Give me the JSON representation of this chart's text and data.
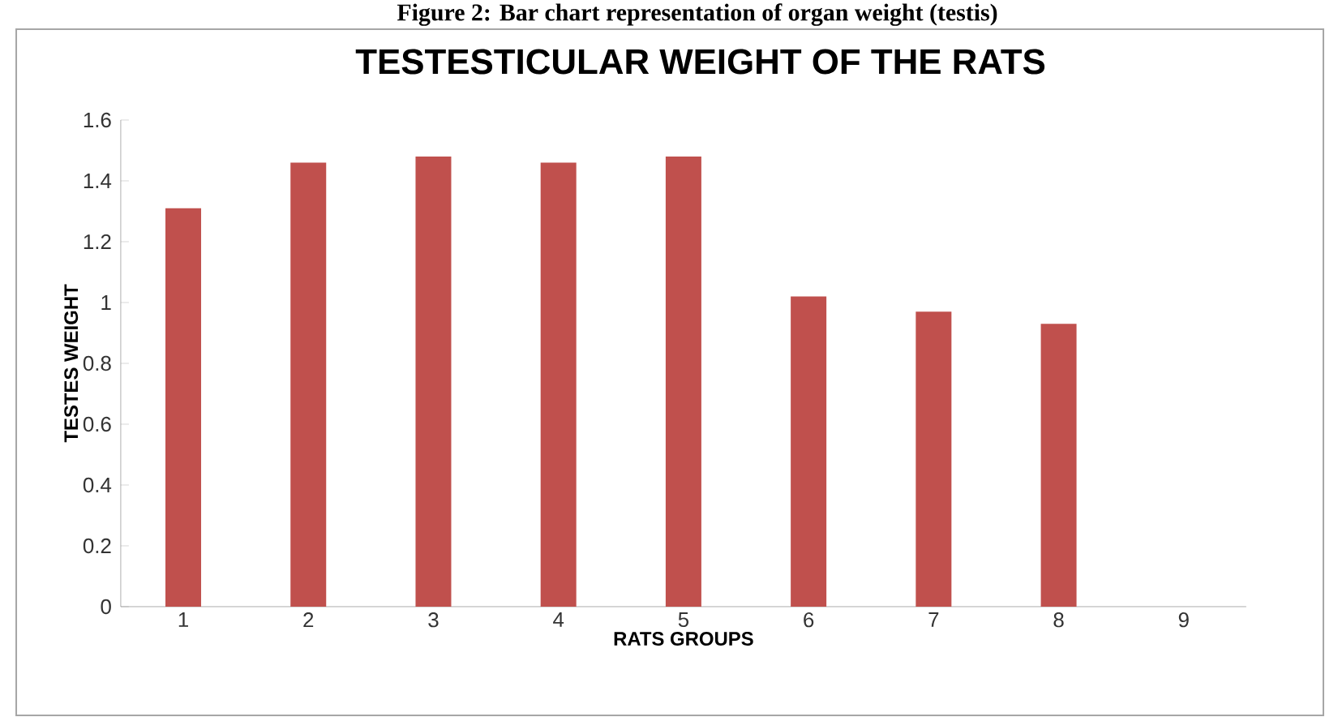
{
  "chart_data": {
    "type": "bar",
    "title": "TESTESTICULAR WEIGHT OF THE RATS",
    "annotations": [
      "Figure 2: Bar chart representation of organ weight (testis)"
    ],
    "xlabel": "RATS GROUPS",
    "ylabel": "TESTES WEIGHT",
    "categories": [
      "1",
      "2",
      "3",
      "4",
      "5",
      "6",
      "7",
      "8",
      "9"
    ],
    "values": [
      1.31,
      1.46,
      1.48,
      1.46,
      1.48,
      1.02,
      0.97,
      0.93,
      null
    ],
    "color": "#c0504d",
    "ylim": [
      0,
      1.6
    ],
    "yticks": [
      0,
      0.2,
      0.4,
      0.6,
      0.8,
      1,
      1.2,
      1.4,
      1.6
    ]
  }
}
